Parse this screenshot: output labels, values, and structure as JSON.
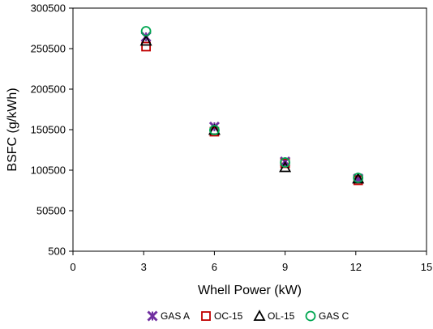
{
  "chart_data": {
    "type": "scatter",
    "xlabel": "Whell Power (kW)",
    "ylabel": "BSFC (g/kWh)",
    "xlim": [
      0,
      15
    ],
    "ylim": [
      500,
      300500
    ],
    "xticks": [
      0,
      3,
      6,
      9,
      12,
      15
    ],
    "yticks": [
      500,
      50500,
      100500,
      150500,
      200500,
      250500,
      300500
    ],
    "xtick_labels": [
      "0",
      "3",
      "6",
      "9",
      "12",
      "15"
    ],
    "ytick_labels": [
      "500",
      "50500",
      "100500",
      "150500",
      "200500",
      "250500",
      "300500"
    ],
    "grid": false,
    "legend_position": "bottom",
    "series": [
      {
        "name": "GAS A",
        "marker": "x-star",
        "color": "#7030A0",
        "x": [
          3.1,
          6.0,
          9.0,
          12.1
        ],
        "y": [
          265000,
          154000,
          111000,
          90000
        ]
      },
      {
        "name": "OC-15",
        "marker": "square",
        "color": "#C00000",
        "x": [
          3.1,
          6.0,
          9.0,
          12.1
        ],
        "y": [
          253000,
          148000,
          109000,
          88000
        ]
      },
      {
        "name": "OL-15",
        "marker": "triangle",
        "color": "#000000",
        "x": [
          3.1,
          6.0,
          9.0,
          12.1
        ],
        "y": [
          260000,
          150000,
          104000,
          90000
        ]
      },
      {
        "name": "GAS C",
        "marker": "circle",
        "color": "#00A651",
        "x": [
          3.1,
          6.0,
          9.0,
          12.1
        ],
        "y": [
          272000,
          150000,
          110000,
          91000
        ]
      }
    ]
  }
}
